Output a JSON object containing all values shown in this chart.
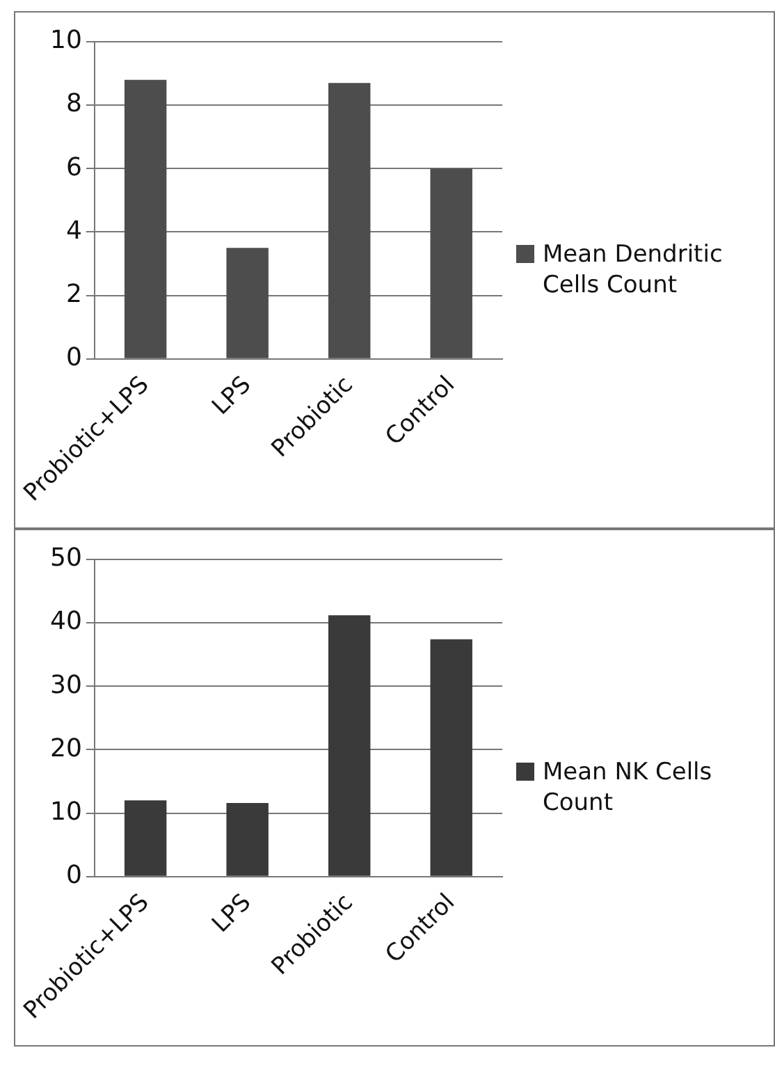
{
  "chart_data": [
    {
      "type": "bar",
      "categories": [
        "Probiotic+LPS",
        "LPS",
        "Probiotic",
        "Control"
      ],
      "series": [
        {
          "name": "Mean Dendritic Cells Count",
          "color": "#4d4d4d",
          "values": [
            8.8,
            3.5,
            8.7,
            6.0
          ]
        }
      ],
      "ylim": [
        0,
        10
      ],
      "yticks": [
        0,
        2,
        4,
        6,
        8,
        10
      ],
      "grid": "y",
      "legend": "right"
    },
    {
      "type": "bar",
      "categories": [
        "Probiotic+LPS",
        "LPS",
        "Probiotic",
        "Control"
      ],
      "series": [
        {
          "name": "Mean NK Cells Count",
          "color": "#3a3a3a",
          "values": [
            12,
            11.6,
            41.2,
            37.4
          ]
        }
      ],
      "ylim": [
        0,
        50
      ],
      "yticks": [
        0,
        10,
        20,
        30,
        40,
        50
      ],
      "grid": "y",
      "legend": "right"
    }
  ]
}
